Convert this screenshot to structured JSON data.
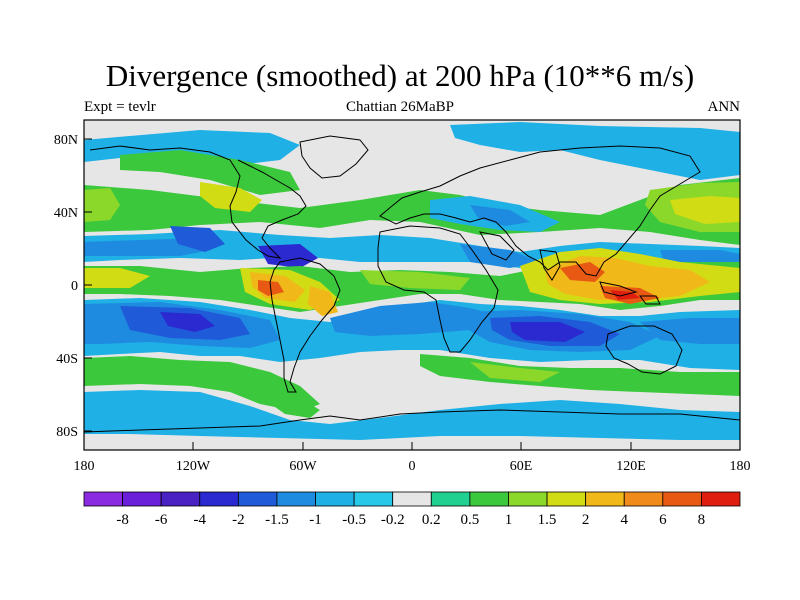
{
  "title": "Divergence (smoothed) at 200 hPa (10**6 m/s)",
  "subtitle_left": "Expt = tevlr",
  "subtitle_center": "Chattian  26MaBP",
  "subtitle_right": "ANN",
  "y_ticks": [
    "80N",
    "40N",
    "0",
    "40S",
    "80S"
  ],
  "x_ticks": [
    "180",
    "120W",
    "60W",
    "0",
    "60E",
    "120E",
    "180"
  ],
  "colorbar": {
    "labels": [
      "-8",
      "-6",
      "-4",
      "-2",
      "-1.5",
      "-1",
      "-0.5",
      "-0.2",
      "0.2",
      "0.5",
      "1",
      "1.5",
      "2",
      "4",
      "6",
      "8"
    ],
    "colors": [
      "#8a2be2",
      "#6a1fd8",
      "#4a22c4",
      "#2a2ad0",
      "#1f5ad8",
      "#1e8be0",
      "#1fb0e6",
      "#28c8e8",
      "#e6e6e6",
      "#20d090",
      "#3cc83c",
      "#8cd82a",
      "#d2dc14",
      "#f0b818",
      "#f08a1a",
      "#e85a14",
      "#e01e10"
    ]
  },
  "colors": {
    "neutral": "#e6e6e6",
    "coast": "#000000"
  }
}
